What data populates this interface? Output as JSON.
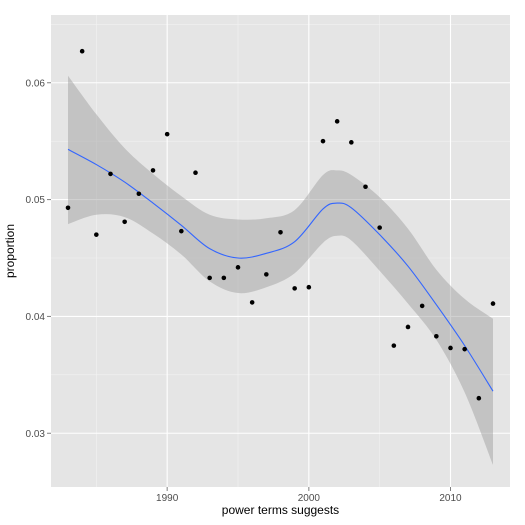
{
  "chart_data": {
    "type": "scatter",
    "title": "",
    "xlabel": "power terms suggests",
    "ylabel": "proportion",
    "xlim": [
      1981.8,
      2014.2
    ],
    "ylim": [
      0.0254,
      0.0658
    ],
    "xticks": [
      1990,
      2000,
      2010
    ],
    "xtick_labels": [
      "1990",
      "2000",
      "2010"
    ],
    "yticks": [
      0.03,
      0.04,
      0.05,
      0.06
    ],
    "ytick_labels": [
      "0.03",
      "0.04",
      "0.05",
      "0.06"
    ],
    "grid": true,
    "background": "#e5e5e5",
    "grid_color": "#ffffff",
    "point_color": "#000000",
    "smooth_color": "#3366ff",
    "ribbon_color": "#999999",
    "points": [
      {
        "x": 1983,
        "y": 0.0493
      },
      {
        "x": 1984,
        "y": 0.0627
      },
      {
        "x": 1985,
        "y": 0.047
      },
      {
        "x": 1986,
        "y": 0.0522
      },
      {
        "x": 1987,
        "y": 0.0481
      },
      {
        "x": 1988,
        "y": 0.0505
      },
      {
        "x": 1989,
        "y": 0.0525
      },
      {
        "x": 1990,
        "y": 0.0556
      },
      {
        "x": 1991,
        "y": 0.0473
      },
      {
        "x": 1992,
        "y": 0.0523
      },
      {
        "x": 1993,
        "y": 0.0433
      },
      {
        "x": 1994,
        "y": 0.0433
      },
      {
        "x": 1995,
        "y": 0.0442
      },
      {
        "x": 1996,
        "y": 0.0412
      },
      {
        "x": 1997,
        "y": 0.0436
      },
      {
        "x": 1998,
        "y": 0.0472
      },
      {
        "x": 1999,
        "y": 0.0424
      },
      {
        "x": 2000,
        "y": 0.0425
      },
      {
        "x": 2001,
        "y": 0.055
      },
      {
        "x": 2002,
        "y": 0.0567
      },
      {
        "x": 2003,
        "y": 0.0549
      },
      {
        "x": 2004,
        "y": 0.0511
      },
      {
        "x": 2005,
        "y": 0.0476
      },
      {
        "x": 2006,
        "y": 0.0375
      },
      {
        "x": 2007,
        "y": 0.0391
      },
      {
        "x": 2008,
        "y": 0.0409
      },
      {
        "x": 2009,
        "y": 0.0383
      },
      {
        "x": 2010,
        "y": 0.0373
      },
      {
        "x": 2011,
        "y": 0.0372
      },
      {
        "x": 2012,
        "y": 0.033
      },
      {
        "x": 2013,
        "y": 0.0411
      }
    ],
    "smooth": {
      "x": [
        1983,
        1985,
        1987,
        1989,
        1991,
        1993,
        1995,
        1997,
        1999,
        2001,
        2002,
        2003,
        2005,
        2007,
        2009,
        2011,
        2013
      ],
      "y": [
        0.0543,
        0.053,
        0.0515,
        0.0497,
        0.0478,
        0.0458,
        0.045,
        0.0454,
        0.0464,
        0.0492,
        0.0497,
        0.0493,
        0.047,
        0.0443,
        0.041,
        0.0375,
        0.0336
      ],
      "lower": [
        0.0479,
        0.0487,
        0.0485,
        0.0471,
        0.0453,
        0.043,
        0.042,
        0.0425,
        0.0437,
        0.0463,
        0.0469,
        0.0465,
        0.0439,
        0.0411,
        0.038,
        0.0335,
        0.0273
      ],
      "upper": [
        0.0606,
        0.0573,
        0.0544,
        0.0522,
        0.0503,
        0.0487,
        0.0483,
        0.0484,
        0.0491,
        0.0521,
        0.0525,
        0.0521,
        0.0502,
        0.0475,
        0.044,
        0.0415,
        0.0398
      ]
    }
  }
}
